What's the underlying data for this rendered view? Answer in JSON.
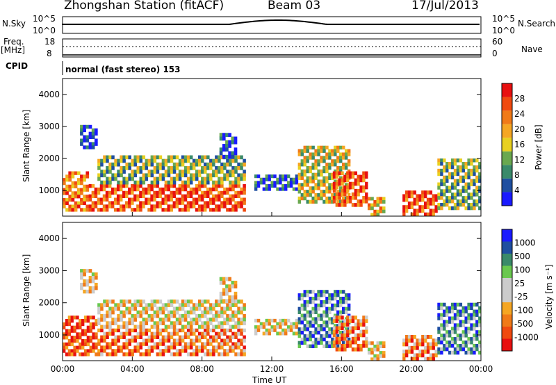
{
  "header": {
    "station": "Zhongshan Station (fitACF)",
    "beam": "Beam 03",
    "date": "17/Jul/2013"
  },
  "aux_panels": {
    "sky_label": "N.Sky",
    "sky_top": "10^5",
    "sky_bottom": "10^0",
    "search_label": "N.Search",
    "search_top": "10^5",
    "search_bottom": "10^0",
    "freq_label_1": "Freq.",
    "freq_label_2": "[MHz]",
    "freq_top": "18",
    "freq_bottom": "8",
    "nave_label": "Nave",
    "nave_top": "60",
    "nave_bottom": "0",
    "cpid_label": "CPID",
    "cpid_text": "normal (fast stereo) 153"
  },
  "colors": {
    "power": [
      "#1a1aff",
      "#1f4fa0",
      "#3a8a6a",
      "#6aa84f",
      "#e8d020",
      "#f5a623",
      "#f07a18",
      "#f04a10",
      "#e81010"
    ],
    "velocity": [
      "#e81010",
      "#f04a10",
      "#f07a18",
      "#f5a623",
      "#cccccc",
      "#cccccc",
      "#6ac84f",
      "#3a8a6a",
      "#1f4fa0",
      "#1a1aff"
    ]
  },
  "chart_data": [
    {
      "type": "heatmap",
      "name": "power",
      "ylabel": "Slant Range [km]",
      "ylim": [
        200,
        4500
      ],
      "yticks": [
        "1000",
        "2000",
        "3000",
        "4000"
      ],
      "ytick_values": [
        1000,
        2000,
        3000,
        4000
      ],
      "colorbar_label": "Power [dB]",
      "colorbar_ticks": [
        "4",
        "8",
        "12",
        "16",
        "20",
        "24",
        "28"
      ],
      "colorbar_range": [
        0,
        32
      ],
      "xlim": [
        0,
        24
      ],
      "echo_regions": [
        {
          "t0": 0.0,
          "t1": 1.5,
          "r0": 350,
          "r1": 1600,
          "level": 6
        },
        {
          "t0": 1.0,
          "t1": 2.0,
          "r0": 2300,
          "r1": 3050,
          "level": 1
        },
        {
          "t0": 1.5,
          "t1": 10.5,
          "r0": 350,
          "r1": 1200,
          "level": 7
        },
        {
          "t0": 2.0,
          "t1": 10.5,
          "r0": 1200,
          "r1": 2100,
          "level": 3
        },
        {
          "t0": 9.0,
          "t1": 10.0,
          "r0": 2000,
          "r1": 2800,
          "level": 1
        },
        {
          "t0": 11.0,
          "t1": 13.5,
          "r0": 1000,
          "r1": 1500,
          "level": 1
        },
        {
          "t0": 13.5,
          "t1": 16.5,
          "r0": 600,
          "r1": 2400,
          "level": 4
        },
        {
          "t0": 15.5,
          "t1": 17.5,
          "r0": 500,
          "r1": 1600,
          "level": 7
        },
        {
          "t0": 17.5,
          "t1": 18.5,
          "r0": 200,
          "r1": 800,
          "level": 5
        },
        {
          "t0": 19.5,
          "t1": 21.5,
          "r0": 200,
          "r1": 1000,
          "level": 7
        },
        {
          "t0": 21.5,
          "t1": 24.0,
          "r0": 400,
          "r1": 2000,
          "level": 3
        }
      ]
    },
    {
      "type": "heatmap",
      "name": "velocity",
      "ylabel": "Slant Range [km]",
      "ylim": [
        200,
        4500
      ],
      "yticks": [
        "1000",
        "2000",
        "3000",
        "4000"
      ],
      "ytick_values": [
        1000,
        2000,
        3000,
        4000
      ],
      "xlabel": "Time UT",
      "xticks": [
        "00:00",
        "04:00",
        "08:00",
        "12:00",
        "16:00",
        "20:00",
        "00:00"
      ],
      "xtick_values": [
        0,
        4,
        8,
        12,
        16,
        20,
        24
      ],
      "colorbar_label": "Velocity [m s⁻¹]",
      "colorbar_ticks": [
        "-1000",
        "-500",
        "-100",
        "-25",
        "25",
        "100",
        "500",
        "1000"
      ],
      "xlim": [
        0,
        24
      ],
      "echo_regions": [
        {
          "t0": 0.0,
          "t1": 2.0,
          "r0": 350,
          "r1": 1600,
          "level": 1
        },
        {
          "t0": 1.0,
          "t1": 2.0,
          "r0": 2300,
          "r1": 3050,
          "level": 4
        },
        {
          "t0": 2.0,
          "t1": 10.5,
          "r0": 350,
          "r1": 1200,
          "level": 2
        },
        {
          "t0": 2.0,
          "t1": 10.5,
          "r0": 1200,
          "r1": 2100,
          "level": 4
        },
        {
          "t0": 9.0,
          "t1": 10.0,
          "r0": 2000,
          "r1": 2800,
          "level": 4
        },
        {
          "t0": 11.0,
          "t1": 13.5,
          "r0": 1000,
          "r1": 1500,
          "level": 4
        },
        {
          "t0": 13.5,
          "t1": 16.5,
          "r0": 600,
          "r1": 2400,
          "level": 7
        },
        {
          "t0": 15.5,
          "t1": 17.5,
          "r0": 500,
          "r1": 1600,
          "level": 2
        },
        {
          "t0": 17.5,
          "t1": 18.5,
          "r0": 200,
          "r1": 800,
          "level": 4
        },
        {
          "t0": 19.5,
          "t1": 21.5,
          "r0": 200,
          "r1": 1000,
          "level": 2
        },
        {
          "t0": 21.5,
          "t1": 24.0,
          "r0": 400,
          "r1": 2000,
          "level": 7
        }
      ]
    }
  ]
}
